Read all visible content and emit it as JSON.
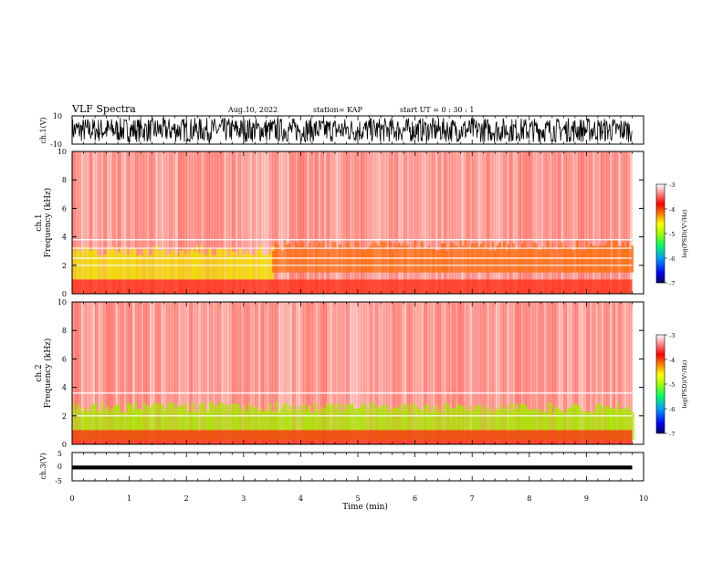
{
  "header": {
    "title": "VLF Spectra",
    "date": "Aug.10, 2022",
    "station": "station= KAP",
    "start_ut": "start  UT  =   0  : 30 : 1"
  },
  "colors": {
    "spectrogram_low": "#ff3b1f",
    "spectrogram_bg": "#ffffff",
    "accent_yellow": "#f0e000",
    "accent_green": "#7be000",
    "colorbar": [
      "#000080",
      "#0000ff",
      "#00a0ff",
      "#00ff60",
      "#a0ff00",
      "#ffff00",
      "#ff8000",
      "#ff0000",
      "#ff8080",
      "#ffffff"
    ]
  },
  "chart_data": [
    {
      "type": "line",
      "name": "ch1-waveform",
      "ylabel": "ch.1(V)",
      "ylim": [
        -10,
        10
      ],
      "y_tick_labels": [
        "10",
        "-10"
      ],
      "x": [
        0,
        10
      ],
      "description_series": "dense black waveform oscillating between about -9 and 9 V",
      "amplitude": 9
    },
    {
      "type": "heatmap",
      "name": "ch1-spectrogram",
      "ylabel": "ch.1\nFrequency  (kHz)",
      "ylim": [
        0,
        10
      ],
      "y_tick_labels": [
        "0",
        "2",
        "4",
        "6",
        "8",
        "10"
      ],
      "xlim": [
        0,
        9.8
      ],
      "colorbar": {
        "label": "log(PSD)(V²/Hz)",
        "ticks": [
          "-3",
          "-4",
          "-5",
          "-6",
          "-7"
        ],
        "range": [
          -7,
          -3
        ]
      },
      "bands": [
        {
          "f_low": 1.0,
          "f_high": 3.4,
          "t_end": 3.5,
          "intensity": "yellow"
        },
        {
          "f_low": 1.5,
          "f_high": 3.8,
          "t_start": 3.5,
          "intensity": "orange"
        }
      ],
      "horizontal_lines_khz": [
        2.0,
        2.5,
        3.2,
        3.8
      ]
    },
    {
      "type": "heatmap",
      "name": "ch2-spectrogram",
      "ylabel": "ch.2\nFrequency  (kHz)",
      "ylim": [
        0,
        10
      ],
      "y_tick_labels": [
        "0",
        "2",
        "4",
        "6",
        "8",
        "10"
      ],
      "xlim": [
        0,
        9.8
      ],
      "colorbar": {
        "label": "log(PSD)(V²/Hz)",
        "ticks": [
          "-3",
          "-4",
          "-5",
          "-6",
          "-7"
        ],
        "range": [
          -7,
          -3
        ]
      },
      "bands": [
        {
          "f_low": 0.3,
          "f_high": 3.0,
          "t_end": 9.8,
          "intensity": "green-yellow"
        }
      ],
      "horizontal_lines_khz": [
        2.0,
        3.6
      ]
    },
    {
      "type": "line",
      "name": "ch3-waveform",
      "ylabel": "ch.3(V)",
      "ylim": [
        -5,
        5
      ],
      "y_tick_labels": [
        "5",
        "0",
        "-5"
      ],
      "x": [
        0,
        10
      ],
      "amplitude": 0.7,
      "offset": -0.3
    }
  ],
  "x_axis": {
    "xlabel": "Time  (min)",
    "xlim": [
      0,
      10
    ],
    "ticks": [
      "0",
      "1",
      "2",
      "3",
      "4",
      "5",
      "6",
      "7",
      "8",
      "9",
      "10"
    ]
  }
}
